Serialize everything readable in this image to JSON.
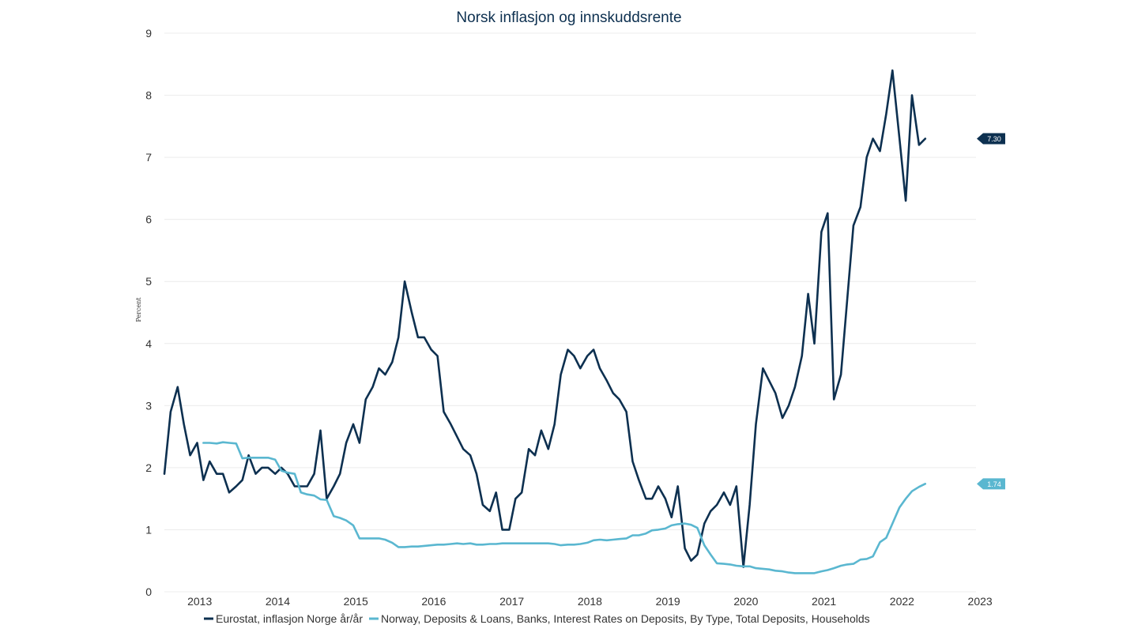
{
  "chart_data": {
    "type": "line",
    "title": "Norsk inflasjon og innskuddsrente",
    "xlabel": "",
    "ylabel": "Percent",
    "ylim": [
      0,
      9
    ],
    "yticks": [
      "0",
      "1",
      "2",
      "3",
      "4",
      "5",
      "6",
      "7",
      "8",
      "9"
    ],
    "xlim": [
      2012.75,
      2023.1
    ],
    "xticks": [
      {
        "label": "2013",
        "value": 2013.0
      },
      {
        "label": "2014",
        "value": 2014.0
      },
      {
        "label": "2015",
        "value": 2015.0
      },
      {
        "label": "2016",
        "value": 2016.0
      },
      {
        "label": "2017",
        "value": 2017.0
      },
      {
        "label": "2018",
        "value": 2018.0
      },
      {
        "label": "2019",
        "value": 2019.0
      },
      {
        "label": "2020",
        "value": 2020.0
      },
      {
        "label": "2021",
        "value": 2021.0
      },
      {
        "label": "2022",
        "value": 2022.0
      },
      {
        "label": "2023",
        "value": 2023.0
      }
    ],
    "grid": true,
    "legend_position": "bottom",
    "series": [
      {
        "name": "Eurostat, inflasjon Norge år/år",
        "color": "#0d3050",
        "end_label": "7.30",
        "points": [
          [
            2012.75,
            1.9
          ],
          [
            2012.83,
            2.9
          ],
          [
            2012.92,
            3.3
          ],
          [
            2013.0,
            2.7
          ],
          [
            2013.08,
            2.2
          ],
          [
            2013.17,
            2.4
          ],
          [
            2013.25,
            1.8
          ],
          [
            2013.33,
            2.1
          ],
          [
            2013.42,
            1.9
          ],
          [
            2013.5,
            1.9
          ],
          [
            2013.58,
            1.6
          ],
          [
            2013.67,
            1.7
          ],
          [
            2013.75,
            1.8
          ],
          [
            2013.83,
            2.2
          ],
          [
            2013.92,
            1.9
          ],
          [
            2014.0,
            2.0
          ],
          [
            2014.08,
            2.0
          ],
          [
            2014.17,
            1.9
          ],
          [
            2014.25,
            2.0
          ],
          [
            2014.33,
            1.9
          ],
          [
            2014.42,
            1.7
          ],
          [
            2014.5,
            1.7
          ],
          [
            2014.58,
            1.7
          ],
          [
            2014.67,
            1.9
          ],
          [
            2014.75,
            2.6
          ],
          [
            2014.83,
            1.5
          ],
          [
            2014.92,
            1.7
          ],
          [
            2015.0,
            1.9
          ],
          [
            2015.08,
            2.4
          ],
          [
            2015.17,
            2.7
          ],
          [
            2015.25,
            2.4
          ],
          [
            2015.33,
            3.1
          ],
          [
            2015.42,
            3.3
          ],
          [
            2015.5,
            3.6
          ],
          [
            2015.58,
            3.5
          ],
          [
            2015.67,
            3.7
          ],
          [
            2015.75,
            4.1
          ],
          [
            2015.83,
            5.0
          ],
          [
            2015.92,
            4.5
          ],
          [
            2016.0,
            4.1
          ],
          [
            2016.08,
            4.1
          ],
          [
            2016.17,
            3.9
          ],
          [
            2016.25,
            3.8
          ],
          [
            2016.33,
            2.9
          ],
          [
            2016.42,
            2.7
          ],
          [
            2016.5,
            2.5
          ],
          [
            2016.58,
            2.3
          ],
          [
            2016.67,
            2.2
          ],
          [
            2016.75,
            1.9
          ],
          [
            2016.83,
            1.4
          ],
          [
            2016.92,
            1.3
          ],
          [
            2017.0,
            1.6
          ],
          [
            2017.08,
            1.0
          ],
          [
            2017.17,
            1.0
          ],
          [
            2017.25,
            1.5
          ],
          [
            2017.33,
            1.6
          ],
          [
            2017.42,
            2.3
          ],
          [
            2017.5,
            2.2
          ],
          [
            2017.58,
            2.6
          ],
          [
            2017.67,
            2.3
          ],
          [
            2017.75,
            2.7
          ],
          [
            2017.83,
            3.5
          ],
          [
            2017.92,
            3.9
          ],
          [
            2018.0,
            3.8
          ],
          [
            2018.08,
            3.6
          ],
          [
            2018.17,
            3.8
          ],
          [
            2018.25,
            3.9
          ],
          [
            2018.33,
            3.6
          ],
          [
            2018.42,
            3.4
          ],
          [
            2018.5,
            3.2
          ],
          [
            2018.58,
            3.1
          ],
          [
            2018.67,
            2.9
          ],
          [
            2018.75,
            2.1
          ],
          [
            2018.83,
            1.8
          ],
          [
            2018.92,
            1.5
          ],
          [
            2019.0,
            1.5
          ],
          [
            2019.08,
            1.7
          ],
          [
            2019.17,
            1.5
          ],
          [
            2019.25,
            1.2
          ],
          [
            2019.33,
            1.7
          ],
          [
            2019.42,
            0.7
          ],
          [
            2019.5,
            0.5
          ],
          [
            2019.58,
            0.6
          ],
          [
            2019.67,
            1.1
          ],
          [
            2019.75,
            1.3
          ],
          [
            2019.83,
            1.4
          ],
          [
            2019.92,
            1.6
          ],
          [
            2020.0,
            1.4
          ],
          [
            2020.08,
            1.7
          ],
          [
            2020.17,
            0.4
          ],
          [
            2020.25,
            1.4
          ],
          [
            2020.33,
            2.7
          ],
          [
            2020.42,
            3.6
          ],
          [
            2020.5,
            3.4
          ],
          [
            2020.58,
            3.2
          ],
          [
            2020.67,
            2.8
          ],
          [
            2020.75,
            3.0
          ],
          [
            2020.83,
            3.3
          ],
          [
            2020.92,
            3.8
          ],
          [
            2021.0,
            4.8
          ],
          [
            2021.08,
            4.0
          ],
          [
            2021.17,
            5.8
          ],
          [
            2021.25,
            6.1
          ],
          [
            2021.33,
            3.1
          ],
          [
            2021.42,
            3.5
          ],
          [
            2021.5,
            4.7
          ],
          [
            2021.58,
            5.9
          ],
          [
            2021.67,
            6.2
          ],
          [
            2021.75,
            7.0
          ],
          [
            2021.83,
            7.3
          ],
          [
            2021.92,
            7.1
          ],
          [
            2022.0,
            7.7
          ],
          [
            2022.08,
            8.4
          ],
          [
            2022.17,
            7.3
          ],
          [
            2022.25,
            6.3
          ],
          [
            2022.33,
            8.0
          ],
          [
            2022.42,
            7.2
          ],
          [
            2022.5,
            7.3
          ]
        ]
      },
      {
        "name": "Norway, Deposits & Loans, Banks, Interest Rates on Deposits, By Type, Total Deposits, Households",
        "color": "#5ab7d0",
        "end_label": "1.74",
        "points": [
          [
            2013.25,
            2.4
          ],
          [
            2013.33,
            2.4
          ],
          [
            2013.42,
            2.39
          ],
          [
            2013.5,
            2.41
          ],
          [
            2013.58,
            2.4
          ],
          [
            2013.67,
            2.39
          ],
          [
            2013.75,
            2.15
          ],
          [
            2013.83,
            2.16
          ],
          [
            2013.92,
            2.16
          ],
          [
            2014.0,
            2.16
          ],
          [
            2014.08,
            2.16
          ],
          [
            2014.17,
            2.13
          ],
          [
            2014.25,
            1.95
          ],
          [
            2014.33,
            1.92
          ],
          [
            2014.42,
            1.9
          ],
          [
            2014.5,
            1.6
          ],
          [
            2014.58,
            1.57
          ],
          [
            2014.67,
            1.55
          ],
          [
            2014.75,
            1.49
          ],
          [
            2014.83,
            1.48
          ],
          [
            2014.92,
            1.22
          ],
          [
            2015.0,
            1.19
          ],
          [
            2015.08,
            1.15
          ],
          [
            2015.17,
            1.07
          ],
          [
            2015.25,
            0.86
          ],
          [
            2015.33,
            0.86
          ],
          [
            2015.42,
            0.86
          ],
          [
            2015.5,
            0.86
          ],
          [
            2015.58,
            0.84
          ],
          [
            2015.67,
            0.79
          ],
          [
            2015.75,
            0.72
          ],
          [
            2015.83,
            0.72
          ],
          [
            2015.92,
            0.73
          ],
          [
            2016.0,
            0.73
          ],
          [
            2016.08,
            0.74
          ],
          [
            2016.17,
            0.75
          ],
          [
            2016.25,
            0.76
          ],
          [
            2016.33,
            0.76
          ],
          [
            2016.42,
            0.77
          ],
          [
            2016.5,
            0.78
          ],
          [
            2016.58,
            0.77
          ],
          [
            2016.67,
            0.78
          ],
          [
            2016.75,
            0.76
          ],
          [
            2016.83,
            0.76
          ],
          [
            2016.92,
            0.77
          ],
          [
            2017.0,
            0.77
          ],
          [
            2017.08,
            0.78
          ],
          [
            2017.17,
            0.78
          ],
          [
            2017.25,
            0.78
          ],
          [
            2017.33,
            0.78
          ],
          [
            2017.42,
            0.78
          ],
          [
            2017.5,
            0.78
          ],
          [
            2017.58,
            0.78
          ],
          [
            2017.67,
            0.78
          ],
          [
            2017.75,
            0.77
          ],
          [
            2017.83,
            0.75
          ],
          [
            2017.92,
            0.76
          ],
          [
            2018.0,
            0.76
          ],
          [
            2018.08,
            0.77
          ],
          [
            2018.17,
            0.79
          ],
          [
            2018.25,
            0.83
          ],
          [
            2018.33,
            0.84
          ],
          [
            2018.42,
            0.83
          ],
          [
            2018.5,
            0.84
          ],
          [
            2018.58,
            0.85
          ],
          [
            2018.67,
            0.86
          ],
          [
            2018.75,
            0.91
          ],
          [
            2018.83,
            0.91
          ],
          [
            2018.92,
            0.94
          ],
          [
            2019.0,
            0.99
          ],
          [
            2019.08,
            1.0
          ],
          [
            2019.17,
            1.02
          ],
          [
            2019.25,
            1.07
          ],
          [
            2019.33,
            1.09
          ],
          [
            2019.42,
            1.1
          ],
          [
            2019.5,
            1.08
          ],
          [
            2019.58,
            1.03
          ],
          [
            2019.67,
            0.75
          ],
          [
            2019.75,
            0.6
          ],
          [
            2019.83,
            0.46
          ],
          [
            2019.92,
            0.45
          ],
          [
            2020.0,
            0.44
          ],
          [
            2020.08,
            0.42
          ],
          [
            2020.17,
            0.41
          ],
          [
            2020.25,
            0.41
          ],
          [
            2020.33,
            0.38
          ],
          [
            2020.42,
            0.37
          ],
          [
            2020.5,
            0.36
          ],
          [
            2020.58,
            0.34
          ],
          [
            2020.67,
            0.33
          ],
          [
            2020.75,
            0.31
          ],
          [
            2020.83,
            0.3
          ],
          [
            2020.92,
            0.3
          ],
          [
            2021.0,
            0.3
          ],
          [
            2021.08,
            0.3
          ],
          [
            2021.17,
            0.33
          ],
          [
            2021.25,
            0.35
          ],
          [
            2021.33,
            0.38
          ],
          [
            2021.42,
            0.42
          ],
          [
            2021.5,
            0.44
          ],
          [
            2021.58,
            0.45
          ],
          [
            2021.67,
            0.52
          ],
          [
            2021.75,
            0.53
          ],
          [
            2021.83,
            0.57
          ],
          [
            2021.92,
            0.8
          ],
          [
            2022.0,
            0.87
          ],
          [
            2022.08,
            1.1
          ],
          [
            2022.17,
            1.36
          ],
          [
            2022.25,
            1.5
          ],
          [
            2022.33,
            1.62
          ],
          [
            2022.42,
            1.69
          ],
          [
            2022.5,
            1.74
          ]
        ]
      }
    ]
  }
}
